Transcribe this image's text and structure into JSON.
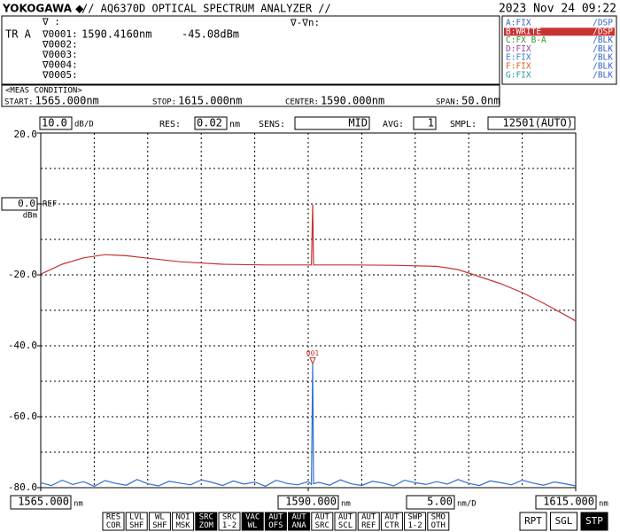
{
  "header": {
    "brand": "YOKOGAWA ◆",
    "model": "// AQ6370D OPTICAL SPECTRUM ANALYZER //",
    "datetime": "2023 Nov 24 09:22"
  },
  "markers": {
    "symbol": "∇ :",
    "trace": "TR A",
    "delta": "∇-∇n:",
    "rows": [
      [
        "∇0001:",
        "1590.4160nm",
        "-45.08dBm"
      ],
      [
        "∇0002:"
      ],
      [
        "∇0003:"
      ],
      [
        "∇0004:"
      ],
      [
        "∇0005:"
      ]
    ]
  },
  "traces": [
    {
      "text": "A:FIX",
      "mode": "/DSP",
      "color": "#2f5fc8",
      "active": false
    },
    {
      "text": "B:WRITE",
      "mode": "/DSP",
      "color": "#c83232",
      "active": true
    },
    {
      "text": "C:FX B-A",
      "mode": "/BLK",
      "color": "#2a9a2a",
      "active": false
    },
    {
      "text": "D:FIX",
      "mode": "/BLK",
      "color": "#9a40a0",
      "active": false
    },
    {
      "text": "E:FIX",
      "mode": "/BLK",
      "color": "#3a80d0",
      "active": false
    },
    {
      "text": "F:FIX",
      "mode": "/BLK",
      "color": "#e06020",
      "active": false
    },
    {
      "text": "G:FIX",
      "mode": "/BLK",
      "color": "#2a9a9a",
      "active": false
    }
  ],
  "meas_condition": {
    "title": "<MEAS CONDITION>",
    "fields": [
      {
        "label": "START:",
        "value": "1565.000nm"
      },
      {
        "label": "STOP:",
        "value": "1615.000nm"
      },
      {
        "label": "CENTER:",
        "value": "1590.000nm"
      },
      {
        "label": "SPAN:",
        "value": "50.0nm"
      }
    ]
  },
  "settings": [
    {
      "label": "RES:",
      "value": "0.02",
      "unit": "nm"
    },
    {
      "label": "SENS:",
      "value": "MID"
    },
    {
      "label": "AVG:",
      "value": "1"
    },
    {
      "label": "SMPL:",
      "value": "12501(AUTO)"
    }
  ],
  "chart_data": {
    "type": "line",
    "xlim": [
      1565,
      1615
    ],
    "ylim": [
      -80,
      20
    ],
    "xticks": [
      {
        "value": 1565,
        "label": "1565.000"
      },
      {
        "value": 1590,
        "label": "1590.000"
      },
      {
        "value": 1615,
        "label": "1615.000"
      }
    ],
    "yticks": [
      {
        "value": 20,
        "label": "20.0"
      },
      {
        "value": 0,
        "label": "0.0"
      },
      {
        "value": -20,
        "label": "-20.0"
      },
      {
        "value": -40,
        "label": "-40.0"
      },
      {
        "value": -60,
        "label": "-60.0"
      },
      {
        "value": -80,
        "label": "-80.0"
      }
    ],
    "x_unit": "nm",
    "y_unit": "dBm",
    "ref_label": "REF",
    "xdiv": {
      "value": 5,
      "label": "5.00",
      "unit": "nm/D"
    },
    "ydiv": {
      "value": 10,
      "label": "10.0",
      "unit": "dB/D"
    },
    "grid": true,
    "series": [
      {
        "color": "#c83232",
        "x": [
          1565,
          1567,
          1569,
          1571,
          1573,
          1575,
          1578,
          1582,
          1586,
          1590,
          1590.3,
          1590.416,
          1590.5,
          1590.8,
          1594,
          1598,
          1602,
          1604,
          1606,
          1608,
          1610,
          1612,
          1614,
          1615
        ],
        "values": [
          -19.8,
          -17.0,
          -15.2,
          -14.3,
          -14.6,
          -15.3,
          -16.3,
          -17.0,
          -17.2,
          -17.2,
          -17.2,
          -0.2,
          -17.2,
          -17.2,
          -17.2,
          -17.3,
          -17.6,
          -18.5,
          -20.5,
          -22.5,
          -25.0,
          -28.0,
          -31.3,
          -33.0
        ]
      },
      {
        "color": "#2f6fd0",
        "x": [
          1565,
          1566,
          1567,
          1568,
          1569,
          1570,
          1571,
          1572,
          1573,
          1574,
          1575,
          1576,
          1577,
          1578,
          1579,
          1580,
          1581,
          1582,
          1583,
          1584,
          1585,
          1586,
          1587,
          1588,
          1589,
          1590,
          1590.3,
          1590.416,
          1590.5,
          1591,
          1592,
          1593,
          1594,
          1595,
          1596,
          1597,
          1598,
          1599,
          1600,
          1601,
          1602,
          1603,
          1604,
          1605,
          1606,
          1607,
          1608,
          1609,
          1610,
          1611,
          1612,
          1613,
          1614,
          1615
        ],
        "values": [
          -78.6,
          -79.4,
          -77.9,
          -79.1,
          -78.3,
          -79.6,
          -78.0,
          -78.8,
          -79.3,
          -77.7,
          -78.9,
          -79.5,
          -78.2,
          -78.7,
          -79.2,
          -77.8,
          -78.5,
          -79.4,
          -78.1,
          -79.0,
          -78.4,
          -79.6,
          -77.9,
          -78.8,
          -79.2,
          -78.3,
          -79.1,
          -45.08,
          -78.9,
          -78.5,
          -79.3,
          -77.8,
          -78.9,
          -79.4,
          -78.2,
          -78.7,
          -79.5,
          -77.9,
          -78.6,
          -79.1,
          -78.3,
          -79.0,
          -77.7,
          -78.8,
          -79.4,
          -78.1,
          -78.6,
          -79.2,
          -77.9,
          -78.7,
          -79.3,
          -78.4,
          -78.9,
          -79.5
        ]
      }
    ],
    "marker": {
      "label": "001",
      "x": 1590.416,
      "y": -45.08
    }
  },
  "softkeys": [
    {
      "lines": [
        "RES",
        "COR"
      ],
      "inv": false
    },
    {
      "lines": [
        "LVL",
        "SHF"
      ],
      "inv": false
    },
    {
      "lines": [
        "WL",
        "SHF"
      ],
      "inv": false
    },
    {
      "lines": [
        "NOI",
        "MSK"
      ],
      "inv": false
    },
    {
      "lines": [
        "SRC",
        "ZOM"
      ],
      "inv": true
    },
    {
      "lines": [
        "SRC",
        "1-2"
      ],
      "inv": false
    },
    {
      "lines": [
        "VAC",
        "WL"
      ],
      "inv": true
    },
    {
      "lines": [
        "AUT",
        "OFS"
      ],
      "inv": true
    },
    {
      "lines": [
        "AUT",
        "ANA"
      ],
      "inv": true
    },
    {
      "lines": [
        "AUT",
        "SRC"
      ],
      "inv": false
    },
    {
      "lines": [
        "AUT",
        "SCL"
      ],
      "inv": false
    },
    {
      "lines": [
        "AUT",
        "REF"
      ],
      "inv": false
    },
    {
      "lines": [
        "AUT",
        "CTR"
      ],
      "inv": false
    },
    {
      "lines": [
        "SWP",
        "1-2"
      ],
      "inv": false
    },
    {
      "lines": [
        "SMO",
        "OTH"
      ],
      "inv": false
    },
    {
      "lines": [
        "RPT"
      ],
      "inv": false
    },
    {
      "lines": [
        "SGL"
      ],
      "inv": false
    },
    {
      "lines": [
        "STP"
      ],
      "inv": true
    }
  ]
}
